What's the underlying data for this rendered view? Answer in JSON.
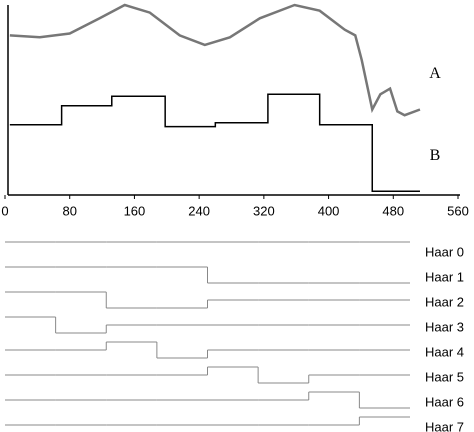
{
  "chart_data": [
    {
      "type": "line",
      "xlim": [
        0,
        560
      ],
      "xticks": [
        0,
        80,
        160,
        240,
        320,
        400,
        480,
        560
      ],
      "ylim": [
        0,
        100
      ],
      "series": [
        {
          "name": "A",
          "color": "#777777",
          "x": [
            6,
            43,
            80,
            117,
            148,
            179,
            216,
            247,
            278,
            315,
            358,
            389,
            420,
            433,
            441,
            454,
            464,
            476,
            485,
            494,
            513
          ],
          "values": [
            84,
            83,
            85,
            93,
            100,
            96,
            84,
            79,
            83,
            93,
            100,
            97,
            87,
            84,
            71,
            45,
            53,
            56,
            44,
            42,
            45
          ]
        },
        {
          "name": "B",
          "color": "#000000",
          "x": [
            6,
            70,
            70,
            132,
            132,
            198,
            198,
            260,
            260,
            325,
            325,
            389,
            389,
            454,
            454,
            513
          ],
          "values": [
            37,
            37,
            47,
            47,
            52,
            52,
            36,
            36,
            38,
            38,
            53,
            53,
            37,
            37,
            2,
            2
          ]
        }
      ]
    },
    {
      "type": "step",
      "series": [
        {
          "name": "Haar 0",
          "color": "#888888",
          "values": [
            1,
            1,
            1,
            1,
            1,
            1,
            1,
            1
          ]
        },
        {
          "name": "Haar 1",
          "color": "#888888",
          "values": [
            1,
            1,
            1,
            1,
            -1,
            -1,
            -1,
            -1
          ]
        },
        {
          "name": "Haar 2",
          "color": "#888888",
          "values": [
            1,
            1,
            -1,
            -1,
            0,
            0,
            0,
            0
          ]
        },
        {
          "name": "Haar 3",
          "color": "#888888",
          "values": [
            1,
            -1,
            0,
            0,
            0,
            0,
            0,
            0
          ]
        },
        {
          "name": "Haar 4",
          "color": "#888888",
          "values": [
            0,
            0,
            1,
            -1,
            0,
            0,
            0,
            0
          ]
        },
        {
          "name": "Haar 5",
          "color": "#888888",
          "values": [
            0,
            0,
            0,
            0,
            1,
            -1,
            0,
            0
          ]
        },
        {
          "name": "Haar 6",
          "color": "#888888",
          "values": [
            0,
            0,
            0,
            0,
            0,
            0,
            1,
            -1
          ]
        },
        {
          "name": "Haar 7",
          "color": "#888888",
          "values": [
            0,
            0,
            0,
            0,
            0,
            0,
            0,
            1
          ]
        }
      ]
    }
  ]
}
